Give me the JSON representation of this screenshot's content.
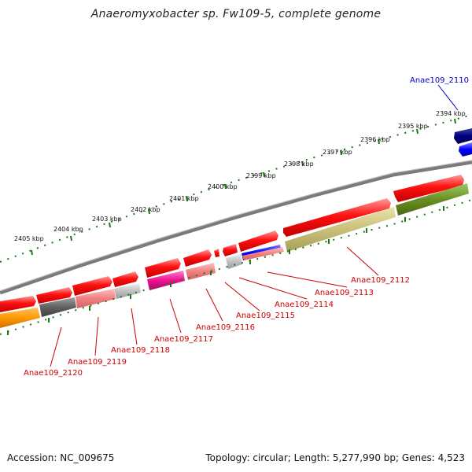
{
  "title": "Anaeromyxobacter sp. Fw109-5, complete genome",
  "footer": {
    "accession": "Accession: NC_009675",
    "stats": "Topology: circular; Length: 5,277,990 bp; Genes: 4,523"
  },
  "kbp_labels": [
    "2394 kbp",
    "2395 kbp",
    "2396 kbp",
    "2397 kbp",
    "2398 kbp",
    "2399 kbp",
    "2400 kbp",
    "2401 kbp",
    "2402 kbp",
    "2403 kbp",
    "2404 kbp",
    "2405 kbp"
  ],
  "gene_labels": [
    "Anae109_2110",
    "Anae109_2112",
    "Anae109_2113",
    "Anae109_2114",
    "Anae109_2115",
    "Anae109_2116",
    "Anae109_2117",
    "Anae109_2118",
    "Anae109_2119",
    "Anae109_2120"
  ],
  "colors": {
    "forward_gene": "#ee0000",
    "reverse_gene": "#0000cc",
    "backbone": "#7a7a7a",
    "tick": "#1a7a1a",
    "label_forward": "#cc0000",
    "label_reverse": "#0000cc"
  }
}
